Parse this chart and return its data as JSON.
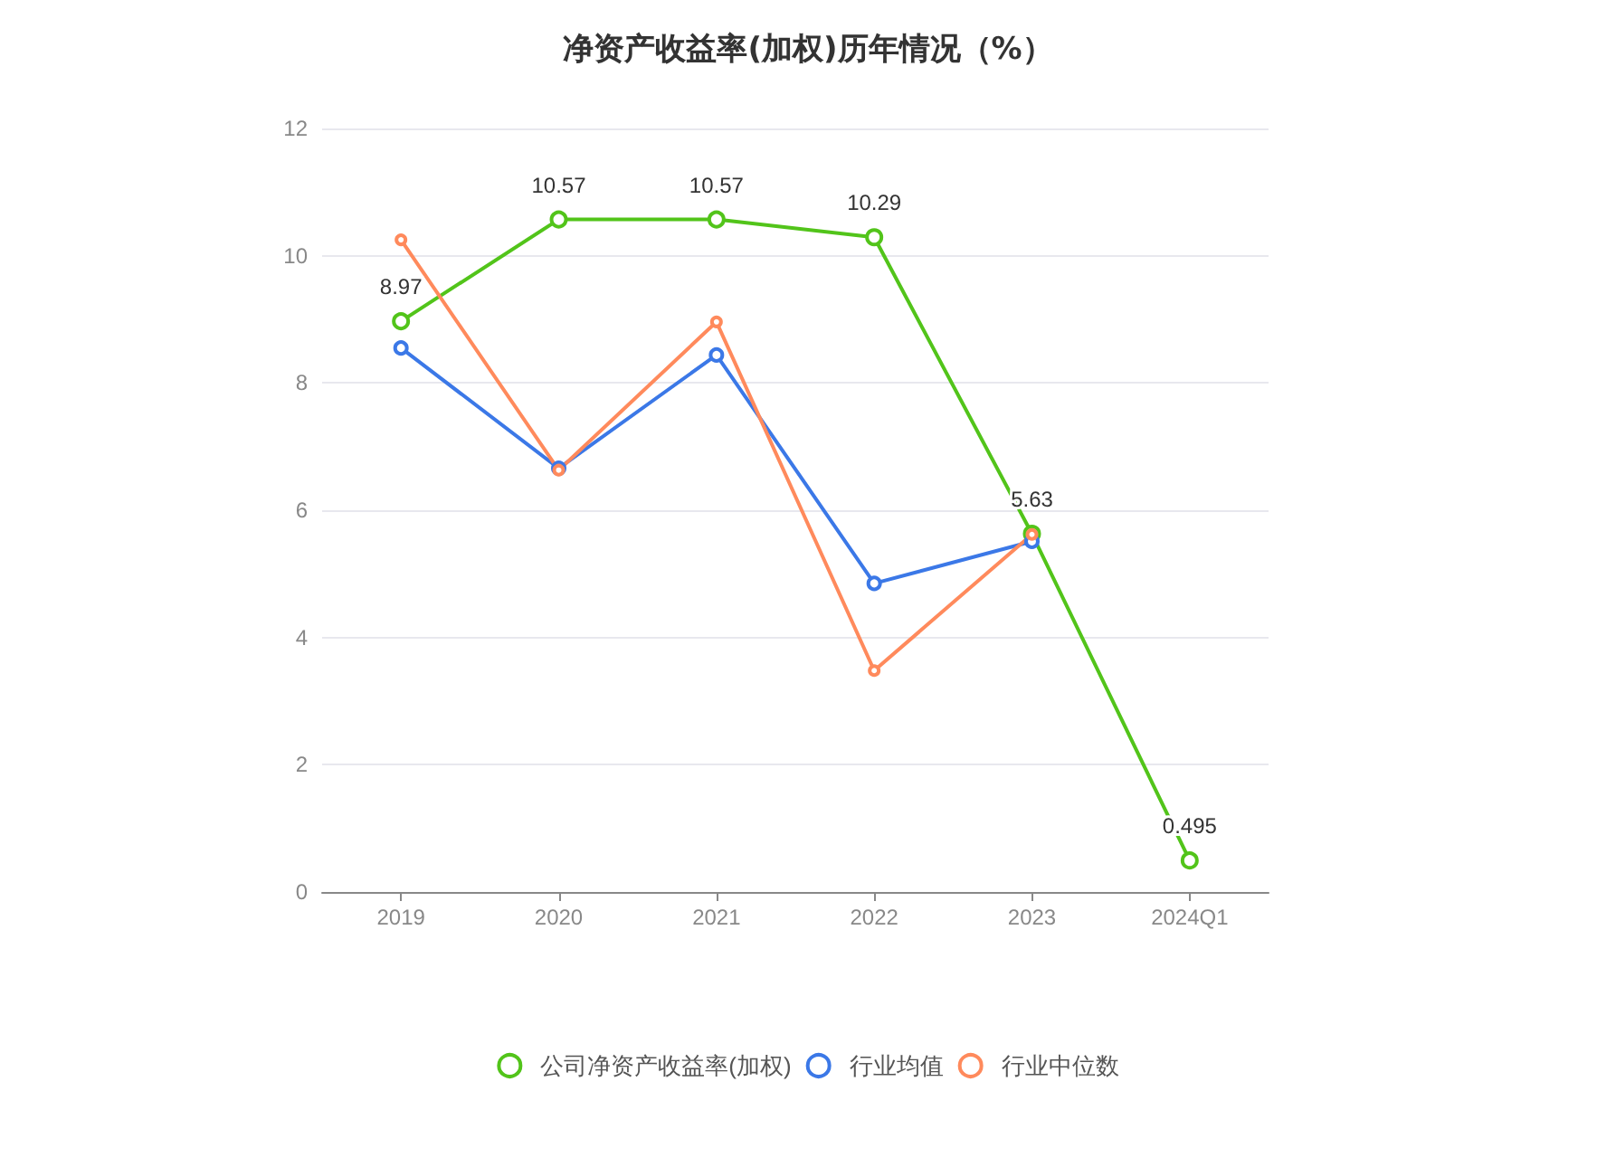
{
  "chart_data": {
    "type": "line",
    "title": "净资产收益率(加权)历年情况（%）",
    "categories": [
      "2019",
      "2020",
      "2021",
      "2022",
      "2023",
      "2024Q1"
    ],
    "series": [
      {
        "name": "公司净资产收益率(加权)",
        "color": "#52c41a",
        "values": [
          8.97,
          10.57,
          10.57,
          10.29,
          5.63,
          0.495
        ],
        "value_labels": [
          "8.97",
          "10.57",
          "10.57",
          "10.29",
          "5.63",
          "0.495"
        ]
      },
      {
        "name": "行业均值",
        "color": "#3b78e7",
        "values": [
          8.55,
          6.66,
          8.44,
          4.85,
          5.51,
          null
        ]
      },
      {
        "name": "行业中位数",
        "color": "#ff8a5c",
        "values": [
          10.25,
          6.63,
          8.96,
          3.48,
          5.62,
          null
        ]
      }
    ],
    "ylim": [
      0,
      12
    ],
    "yticks": [
      0,
      2,
      4,
      6,
      8,
      10,
      12
    ],
    "grid": "y",
    "legend": "bottom",
    "marker": "circle",
    "line_style": "solid"
  }
}
